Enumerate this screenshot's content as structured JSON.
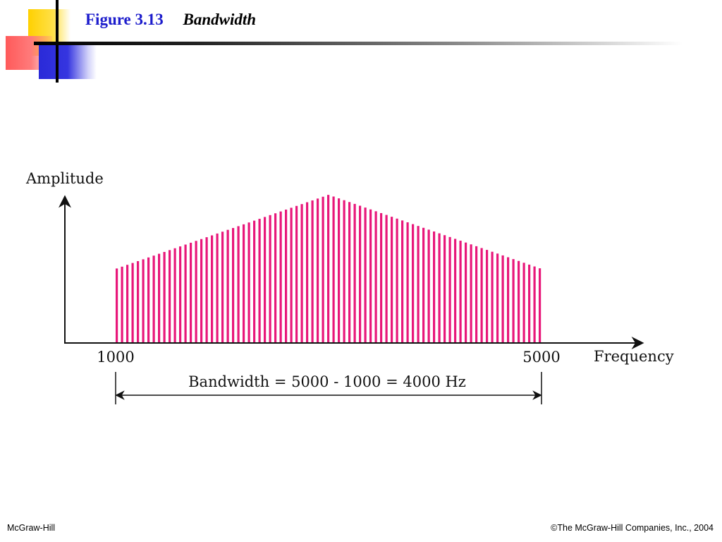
{
  "slide": {
    "figure_number": "Figure 3.13",
    "figure_title": "Bandwidth"
  },
  "diagram": {
    "y_axis_label": "Amplitude",
    "x_axis_label": "Frequency",
    "low_frequency_label": "1000",
    "high_frequency_label": "5000",
    "bandwidth_label": "Bandwidth = 5000 - 1000 = 4000 Hz",
    "spectrum_color": "#e8177a",
    "spectrum": {
      "low_frequency": 1000,
      "high_frequency": 5000,
      "peak_frequency": 3000,
      "edge_amplitude": 0.5,
      "peak_amplitude": 1.0
    }
  },
  "footer": {
    "left": "McGraw-Hill",
    "right": "©The McGraw-Hill Companies, Inc., 2004"
  }
}
